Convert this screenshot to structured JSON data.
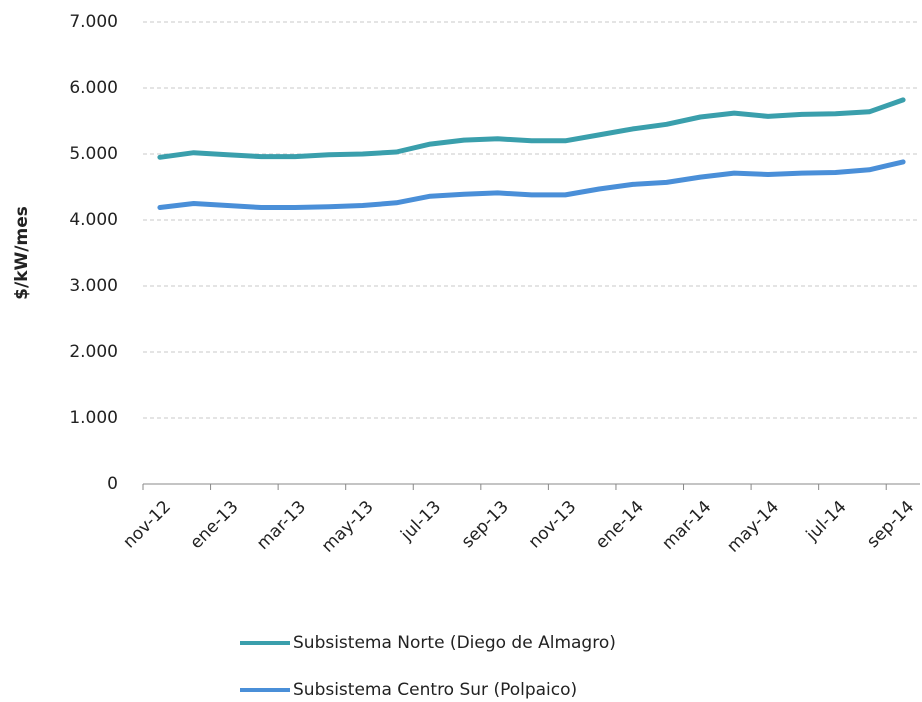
{
  "chart_data": {
    "type": "line",
    "y_label": "$/kW/mes",
    "categories": [
      "nov-12",
      null,
      "ene-13",
      null,
      "mar-13",
      null,
      "may-13",
      null,
      "jul-13",
      null,
      "sep-13",
      null,
      "nov-13",
      null,
      "ene-14",
      null,
      "mar-14",
      null,
      "may-14",
      null,
      "jul-14",
      null,
      "sep-14"
    ],
    "series": [
      {
        "name": "Subsistema Norte (Diego de Almagro)",
        "color": "#3a9fac",
        "values": [
          4950,
          5020,
          4990,
          4960,
          4960,
          4990,
          5000,
          5030,
          5150,
          5210,
          5230,
          5200,
          5200,
          5290,
          5380,
          5450,
          5560,
          5620,
          5570,
          5600,
          5610,
          5640,
          5820
        ]
      },
      {
        "name": "Subsistema Centro Sur (Polpaico)",
        "color": "#4a8fd8",
        "values": [
          4190,
          4250,
          4220,
          4190,
          4190,
          4200,
          4220,
          4260,
          4360,
          4390,
          4410,
          4380,
          4380,
          4470,
          4540,
          4570,
          4650,
          4710,
          4690,
          4710,
          4720,
          4760,
          4880
        ]
      }
    ],
    "ylim": [
      0,
      7000
    ],
    "yticks": [
      0,
      {
        "value": 1000,
        "label": "1.000"
      },
      {
        "value": 2000,
        "label": "2.000"
      },
      {
        "value": 3000,
        "label": "3.000"
      },
      {
        "value": 4000,
        "label": "4.000"
      },
      {
        "value": 5000,
        "label": "5.000"
      },
      {
        "value": 6000,
        "label": "6.000"
      },
      {
        "value": 7000,
        "label": "7.000"
      }
    ],
    "grid": true
  }
}
